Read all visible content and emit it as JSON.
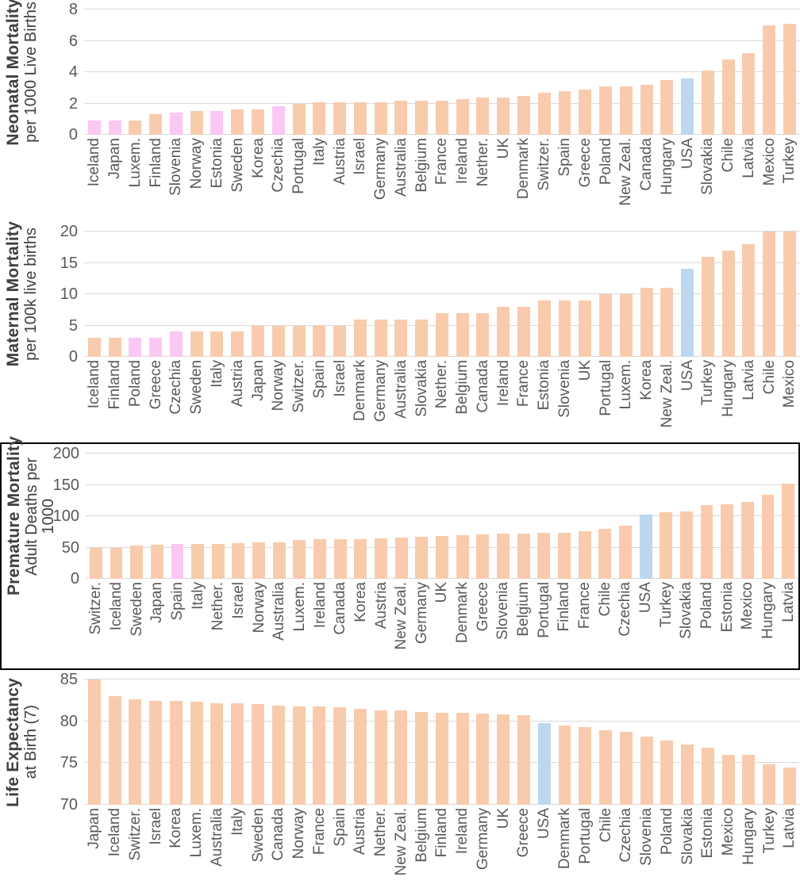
{
  "palette": {
    "bar_default": "#F8CBAD",
    "bar_pink": "#FBC7F3",
    "bar_blue": "#BDD7EE",
    "gridline": "#D9D9D9",
    "tick_text": "#595959",
    "title_text": "#3F3F3F",
    "frame": "#000000"
  },
  "chart_data": [
    {
      "type": "bar",
      "title": "Neonatal Mortality",
      "subtitle": "per 1000 Live Births",
      "subtitle2": "",
      "ylim": [
        0,
        8
      ],
      "yticks": [
        0,
        2,
        4,
        6,
        8
      ],
      "grid": true,
      "framed": false,
      "categories": [
        "Iceland",
        "Japan",
        "Luxem.",
        "Finland",
        "Slovenia",
        "Norway",
        "Estonia",
        "Sweden",
        "Korea",
        "Czechia",
        "Portugal",
        "Italy",
        "Austria",
        "Israel",
        "Germany",
        "Australia",
        "Belgium",
        "France",
        "Ireland",
        "Nether.",
        "UK",
        "Denmark",
        "Switzer.",
        "Spain",
        "Greece",
        "Poland",
        "New Zeal.",
        "Canada",
        "Hungary",
        "USA",
        "Slovakia",
        "Chile",
        "Latvia",
        "Mexico",
        "Turkey"
      ],
      "values": [
        0.9,
        0.9,
        0.9,
        1.3,
        1.4,
        1.5,
        1.5,
        1.6,
        1.6,
        1.8,
        2.0,
        2.1,
        2.1,
        2.1,
        2.1,
        2.2,
        2.2,
        2.2,
        2.3,
        2.4,
        2.4,
        2.5,
        2.7,
        2.8,
        2.9,
        3.1,
        3.1,
        3.2,
        3.5,
        3.6,
        4.1,
        4.8,
        5.2,
        7.0,
        7.1
      ],
      "pink_highlight": [
        "Iceland",
        "Japan",
        "Slovenia",
        "Estonia",
        "Czechia"
      ],
      "blue_highlight": [
        "USA"
      ]
    },
    {
      "type": "bar",
      "title": "Maternal Mortality",
      "subtitle": "per 100k live births",
      "subtitle2": "",
      "ylim": [
        0,
        20
      ],
      "yticks": [
        0,
        5,
        10,
        15,
        20
      ],
      "grid": true,
      "framed": false,
      "categories": [
        "Iceland",
        "Finland",
        "Poland",
        "Greece",
        "Czechia",
        "Sweden",
        "Italy",
        "Austria",
        "Japan",
        "Norway",
        "Switzer.",
        "Spain",
        "Israel",
        "Denmark",
        "Germany",
        "Australia",
        "Slovakia",
        "Nether.",
        "Belgium",
        "Canada",
        "Ireland",
        "France",
        "Estonia",
        "Slovenia",
        "UK",
        "Portugal",
        "Luxem.",
        "Korea",
        "New Zeal.",
        "USA",
        "Turkey",
        "Hungary",
        "Latvia",
        "Chile",
        "Mexico"
      ],
      "values": [
        3,
        3,
        3,
        3,
        4,
        4,
        4,
        4,
        5,
        5,
        5,
        5,
        5,
        6,
        6,
        6,
        6,
        7,
        7,
        7,
        8,
        8,
        9,
        9,
        9,
        10,
        10,
        11,
        11,
        14,
        16,
        17,
        18,
        20,
        20
      ],
      "pink_highlight": [
        "Poland",
        "Greece",
        "Czechia"
      ],
      "blue_highlight": [
        "USA"
      ]
    },
    {
      "type": "bar",
      "title": "Premature Mortality",
      "subtitle": "Adult Deaths per",
      "subtitle2": "1000",
      "ylim": [
        0,
        200
      ],
      "yticks": [
        0,
        50,
        100,
        150,
        200
      ],
      "grid": true,
      "framed": true,
      "categories": [
        "Switzer.",
        "Iceland",
        "Sweden",
        "Japan",
        "Spain",
        "Italy",
        "Nether.",
        "Israel",
        "Norway",
        "Australia",
        "Luxem.",
        "Ireland",
        "Canada",
        "Korea",
        "Austria",
        "New Zeal.",
        "Germany",
        "UK",
        "Denmark",
        "Greece",
        "Slovenia",
        "Belgium",
        "Portugal",
        "Finland",
        "France",
        "Chile",
        "Czechia",
        "USA",
        "Turkey",
        "Slovakia",
        "Poland",
        "Estonia",
        "Mexico",
        "Hungary",
        "Latvia"
      ],
      "values": [
        50,
        50,
        53,
        55,
        56,
        56,
        56,
        57,
        58,
        58,
        62,
        63,
        63,
        63,
        64,
        66,
        67,
        68,
        70,
        71,
        72,
        72,
        74,
        74,
        76,
        80,
        85,
        102,
        106,
        108,
        118,
        119,
        123,
        134,
        152
      ],
      "pink_highlight": [
        "Spain"
      ],
      "blue_highlight": [
        "USA"
      ]
    },
    {
      "type": "bar",
      "title": "Life Expectancy",
      "subtitle": "at Birth (7)",
      "subtitle2": "",
      "ylim": [
        70,
        85
      ],
      "yticks": [
        70,
        75,
        80,
        85
      ],
      "grid": true,
      "framed": false,
      "categories": [
        "Japan",
        "Iceland",
        "Switzer.",
        "Israel",
        "Korea",
        "Luxem.",
        "Australia",
        "Italy",
        "Sweden",
        "Canada",
        "Norway",
        "France",
        "Spain",
        "Austria",
        "Nether.",
        "New Zeal.",
        "Belgium",
        "Finland",
        "Ireland",
        "Germany",
        "UK",
        "Greece",
        "USA",
        "Denmark",
        "Portugal",
        "Chile",
        "Czechia",
        "Slovenia",
        "Poland",
        "Slovakia",
        "Estonia",
        "Mexico",
        "Hungary",
        "Turkey",
        "Latvia"
      ],
      "values": [
        85.0,
        83.0,
        82.6,
        82.4,
        82.4,
        82.3,
        82.2,
        82.2,
        82.1,
        81.9,
        81.8,
        81.8,
        81.7,
        81.5,
        81.3,
        81.3,
        81.1,
        81.0,
        81.0,
        80.9,
        80.8,
        80.7,
        79.8,
        79.5,
        79.3,
        78.9,
        78.7,
        78.2,
        77.7,
        77.2,
        76.8,
        76.0,
        76.0,
        74.8,
        74.5
      ],
      "pink_highlight": [],
      "blue_highlight": [
        "USA"
      ]
    }
  ]
}
